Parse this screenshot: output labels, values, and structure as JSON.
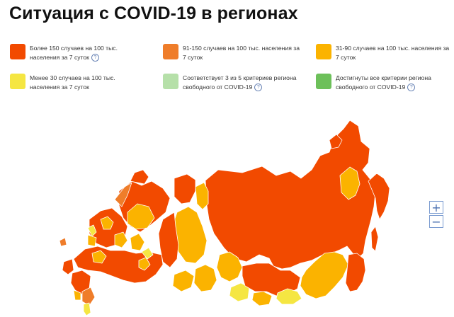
{
  "title": "Ситуация с COVID-19 в регионах",
  "legend": [
    {
      "text": "Более 150 случаев на 100 тыс. населения за 7 суток",
      "color": "#f24a00",
      "help": true
    },
    {
      "text": "91-150 случаев на 100 тыс. населения за 7 суток",
      "color": "#ef7d2a",
      "help": false
    },
    {
      "text": "31-90 случаев на 100 тыс. населения за 7 суток",
      "color": "#fbb300",
      "help": false
    },
    {
      "text": "Менее 30 случаев на 100 тыс. населения за 7 суток",
      "color": "#f5e642",
      "help": false
    },
    {
      "text": "Соответствует 3 из 5 критериев региона свободного от COVID-19",
      "color": "#b6e0a9",
      "help": true
    },
    {
      "text": "Достигнуты все критерии региона свободного от COVID-19",
      "color": "#6dc05a",
      "help": true
    }
  ],
  "help_glyph": "?",
  "zoom": {
    "in_label": "+",
    "out_label": "−"
  },
  "map_colors": {
    "high": "#f24a00",
    "mid_high": "#ef7d2a",
    "mid": "#fbb300",
    "low": "#f5e642",
    "border": "#ffffff"
  }
}
